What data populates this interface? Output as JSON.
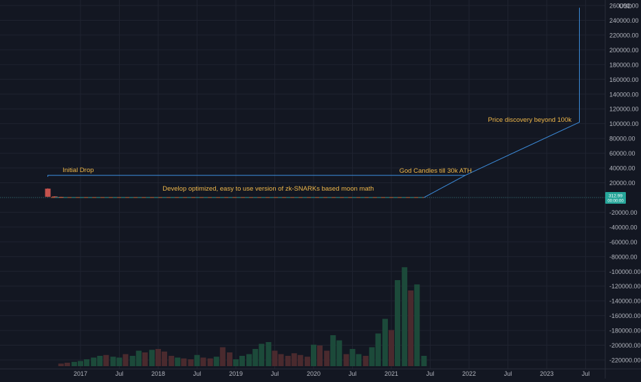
{
  "currency": "USD",
  "last_price_label": "312.99",
  "last_price_sub_label": "00:00:00",
  "colors": {
    "background": "#131722",
    "grid": "#1f2330",
    "axis_text": "#b2b5be",
    "annotation_text": "#f0b84a",
    "line": "#3d8fe0",
    "dashed_line": "#2f8f8a",
    "candle_down": "#c4524d",
    "candle_up": "#2e8f7a",
    "volume_up": "#1c4a3a",
    "volume_down": "#4a2a2e",
    "price_badge": "#26a69a"
  },
  "annotations": [
    {
      "text": "Initial Drop"
    },
    {
      "text": "God Candles till 30k ATH"
    },
    {
      "text": "Price discovery beyond 100k"
    },
    {
      "text": "Develop optimized, easy to use version of zk-SNARKs based moon math"
    }
  ],
  "chart_data": {
    "type": "line",
    "title": "",
    "xlabel": "",
    "ylabel": "",
    "ylim": [
      -230000,
      262000
    ],
    "x_tick_labels": [
      "2017",
      "Jul",
      "2018",
      "Jul",
      "2019",
      "Jul",
      "2020",
      "Jul",
      "2021",
      "Jul",
      "2022",
      "Jul",
      "2023",
      "Jul"
    ],
    "x_tick_years": [
      2017.0,
      2017.5,
      2018.0,
      2018.5,
      2019.0,
      2019.5,
      2020.0,
      2020.5,
      2021.0,
      2021.5,
      2022.0,
      2022.5,
      2023.0,
      2023.5
    ],
    "y_ticks": [
      260000,
      240000,
      220000,
      200000,
      180000,
      160000,
      140000,
      120000,
      100000,
      80000,
      60000,
      40000,
      20000,
      0,
      -20000,
      -40000,
      -60000,
      -80000,
      -100000,
      -120000,
      -140000,
      -160000,
      -180000,
      -200000,
      -220000
    ],
    "y_tick_labels": [
      "260000.00",
      "240000.00",
      "220000.00",
      "200000.00",
      "180000.00",
      "160000.00",
      "140000.00",
      "120000.00",
      "100000.00",
      "80000.00",
      "60000.00",
      "40000.00",
      "20000.00",
      "0.00",
      "-20000.00",
      "-40000.00",
      "-60000.00",
      "-80000.00",
      "-100000.00",
      "-120000.00",
      "-140000.00",
      "-160000.00",
      "-180000.00",
      "-200000.00",
      "-220000.00"
    ],
    "price_path": [
      {
        "year": 2016.58,
        "value": 28000
      },
      {
        "year": 2016.58,
        "value": 30000
      },
      {
        "year": 2021.95,
        "value": 30000
      },
      {
        "year": 2023.42,
        "value": 102000
      },
      {
        "year": 2023.42,
        "value": 257000
      }
    ],
    "moon_math_path": [
      {
        "year": 2016.62,
        "value": 0
      },
      {
        "year": 2021.42,
        "value": 0
      },
      {
        "year": 2021.95,
        "value": 30000
      }
    ],
    "candles": [
      {
        "year": 2016.58,
        "open": 12000,
        "close": 1000,
        "high": 12500,
        "low": 500
      },
      {
        "year": 2016.67,
        "open": 1500,
        "close": 800,
        "high": 1800,
        "low": 500
      },
      {
        "year": 2016.75,
        "open": 800,
        "close": 500,
        "high": 1000,
        "low": 300
      }
    ],
    "volume": [
      {
        "year": 2016.75,
        "value": 3,
        "up": false
      },
      {
        "year": 2016.83,
        "value": 4,
        "up": false
      },
      {
        "year": 2016.92,
        "value": 5,
        "up": true
      },
      {
        "year": 2017.0,
        "value": 6,
        "up": true
      },
      {
        "year": 2017.08,
        "value": 8,
        "up": true
      },
      {
        "year": 2017.17,
        "value": 10,
        "up": true
      },
      {
        "year": 2017.25,
        "value": 12,
        "up": true
      },
      {
        "year": 2017.33,
        "value": 13,
        "up": false
      },
      {
        "year": 2017.42,
        "value": 11,
        "up": true
      },
      {
        "year": 2017.5,
        "value": 10,
        "up": true
      },
      {
        "year": 2017.58,
        "value": 14,
        "up": false
      },
      {
        "year": 2017.67,
        "value": 12,
        "up": true
      },
      {
        "year": 2017.75,
        "value": 18,
        "up": true
      },
      {
        "year": 2017.83,
        "value": 16,
        "up": false
      },
      {
        "year": 2017.92,
        "value": 19,
        "up": true
      },
      {
        "year": 2018.0,
        "value": 20,
        "up": false
      },
      {
        "year": 2018.08,
        "value": 17,
        "up": false
      },
      {
        "year": 2018.17,
        "value": 12,
        "up": false
      },
      {
        "year": 2018.25,
        "value": 10,
        "up": true
      },
      {
        "year": 2018.33,
        "value": 9,
        "up": false
      },
      {
        "year": 2018.42,
        "value": 8,
        "up": false
      },
      {
        "year": 2018.5,
        "value": 13,
        "up": true
      },
      {
        "year": 2018.58,
        "value": 10,
        "up": false
      },
      {
        "year": 2018.67,
        "value": 9,
        "up": false
      },
      {
        "year": 2018.75,
        "value": 11,
        "up": true
      },
      {
        "year": 2018.83,
        "value": 22,
        "up": false
      },
      {
        "year": 2018.92,
        "value": 16,
        "up": false
      },
      {
        "year": 2019.0,
        "value": 8,
        "up": true
      },
      {
        "year": 2019.08,
        "value": 12,
        "up": true
      },
      {
        "year": 2019.17,
        "value": 14,
        "up": true
      },
      {
        "year": 2019.25,
        "value": 20,
        "up": true
      },
      {
        "year": 2019.33,
        "value": 26,
        "up": true
      },
      {
        "year": 2019.42,
        "value": 28,
        "up": true
      },
      {
        "year": 2019.5,
        "value": 18,
        "up": false
      },
      {
        "year": 2019.58,
        "value": 14,
        "up": false
      },
      {
        "year": 2019.67,
        "value": 12,
        "up": false
      },
      {
        "year": 2019.75,
        "value": 15,
        "up": false
      },
      {
        "year": 2019.83,
        "value": 13,
        "up": false
      },
      {
        "year": 2019.92,
        "value": 11,
        "up": false
      },
      {
        "year": 2020.0,
        "value": 25,
        "up": true
      },
      {
        "year": 2020.08,
        "value": 24,
        "up": false
      },
      {
        "year": 2020.17,
        "value": 18,
        "up": false
      },
      {
        "year": 2020.25,
        "value": 36,
        "up": true
      },
      {
        "year": 2020.33,
        "value": 30,
        "up": true
      },
      {
        "year": 2020.42,
        "value": 14,
        "up": false
      },
      {
        "year": 2020.5,
        "value": 20,
        "up": true
      },
      {
        "year": 2020.58,
        "value": 14,
        "up": true
      },
      {
        "year": 2020.67,
        "value": 12,
        "up": false
      },
      {
        "year": 2020.75,
        "value": 22,
        "up": true
      },
      {
        "year": 2020.83,
        "value": 38,
        "up": true
      },
      {
        "year": 2020.92,
        "value": 55,
        "up": true
      },
      {
        "year": 2021.0,
        "value": 42,
        "up": false
      },
      {
        "year": 2021.08,
        "value": 100,
        "up": true
      },
      {
        "year": 2021.17,
        "value": 115,
        "up": true
      },
      {
        "year": 2021.25,
        "value": 88,
        "up": false
      },
      {
        "year": 2021.33,
        "value": 95,
        "up": true
      },
      {
        "year": 2021.42,
        "value": 12,
        "up": true
      }
    ]
  }
}
